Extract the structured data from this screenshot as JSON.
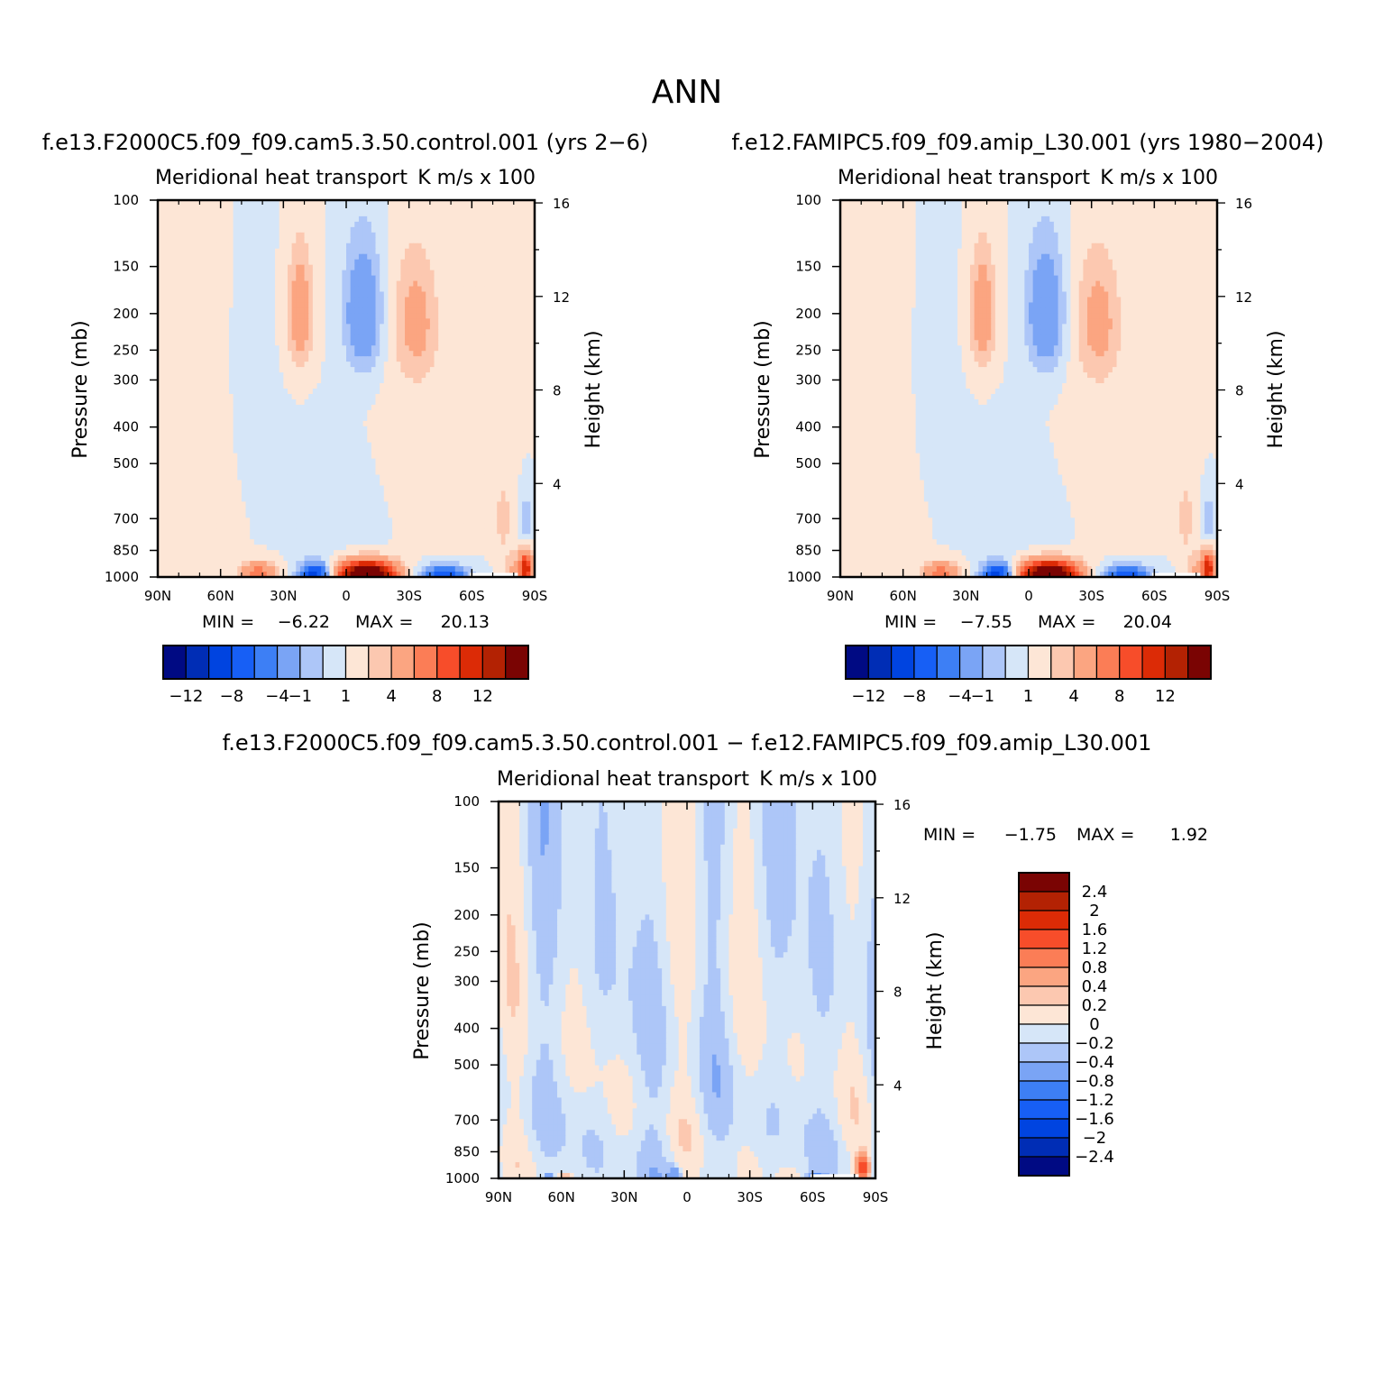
{
  "figure": {
    "title": "ANN"
  },
  "colors": {
    "scale": [
      "#000a83",
      "#002db5",
      "#0044e0",
      "#175ff5",
      "#3d7ff5",
      "#7aa4f5",
      "#adc6f8",
      "#d6e6f8",
      "#fde6d6",
      "#fcc8b0",
      "#fba581",
      "#fb7d56",
      "#f74d2a",
      "#dc2b06",
      "#b32203",
      "#7a0403"
    ]
  },
  "chart_data": [
    {
      "type": "heatmap",
      "id": "p1",
      "case_label": "f.e13.F2000C5.f09_f09.cam5.3.50.control.001 (yrs 2−6)",
      "title": "Meridional heat transport",
      "units": "K m/s x 100",
      "ylabel": "Pressure (mb)",
      "y2label": "Height (km)",
      "x_ticks": [
        "90N",
        "60N",
        "30N",
        "0",
        "30S",
        "60S",
        "90S"
      ],
      "y_ticks": [
        "100",
        "150",
        "200",
        "250",
        "300",
        "400",
        "500",
        "700",
        "850",
        "1000"
      ],
      "y2_ticks": [
        "16",
        "12",
        "8",
        "4"
      ],
      "xlim": [
        90,
        -90
      ],
      "ylim": [
        1000,
        100
      ],
      "min_label": "MIN =",
      "min": "−6.22",
      "max_label": "MAX =",
      "max": "20.13",
      "colorbar_labels": [
        "−12",
        "−8",
        "−4",
        "−1",
        "1",
        "4",
        "8",
        "12"
      ],
      "field": "base"
    },
    {
      "type": "heatmap",
      "id": "p2",
      "case_label": "f.e12.FAMIPC5.f09_f09.amip_L30.001 (yrs 1980−2004)",
      "title": "Meridional heat transport",
      "units": "K m/s x 100",
      "ylabel": "Pressure (mb)",
      "y2label": "Height (km)",
      "x_ticks": [
        "90N",
        "60N",
        "30N",
        "0",
        "30S",
        "60S",
        "90S"
      ],
      "y_ticks": [
        "100",
        "150",
        "200",
        "250",
        "300",
        "400",
        "500",
        "700",
        "850",
        "1000"
      ],
      "y2_ticks": [
        "16",
        "12",
        "8",
        "4"
      ],
      "xlim": [
        90,
        -90
      ],
      "ylim": [
        1000,
        100
      ],
      "min_label": "MIN =",
      "min": "−7.55",
      "max_label": "MAX =",
      "max": "20.04",
      "colorbar_labels": [
        "−12",
        "−8",
        "−4",
        "−1",
        "1",
        "4",
        "8",
        "12"
      ],
      "field": "base"
    },
    {
      "type": "heatmap",
      "id": "p3",
      "case_label": "f.e13.F2000C5.f09_f09.cam5.3.50.control.001 − f.e12.FAMIPC5.f09_f09.amip_L30.001",
      "title": "Meridional heat transport",
      "units": "K m/s x 100",
      "ylabel": "Pressure (mb)",
      "y2label": "Height (km)",
      "x_ticks": [
        "90N",
        "60N",
        "30N",
        "0",
        "30S",
        "60S",
        "90S"
      ],
      "y_ticks": [
        "100",
        "150",
        "200",
        "250",
        "300",
        "400",
        "500",
        "700",
        "850",
        "1000"
      ],
      "y2_ticks": [
        "16",
        "12",
        "8",
        "4"
      ],
      "xlim": [
        90,
        -90
      ],
      "ylim": [
        1000,
        100
      ],
      "min_label": "MIN =",
      "min": "−1.75",
      "max_label": "MAX =",
      "max": "1.92",
      "colorbar_labels": [
        "2.4",
        "2",
        "1.6",
        "1.2",
        "0.8",
        "0.4",
        "0.2",
        "0",
        "−0.2",
        "−0.4",
        "−0.8",
        "−1.2",
        "−1.6",
        "−2",
        "−2.4"
      ],
      "field": "diff"
    }
  ]
}
